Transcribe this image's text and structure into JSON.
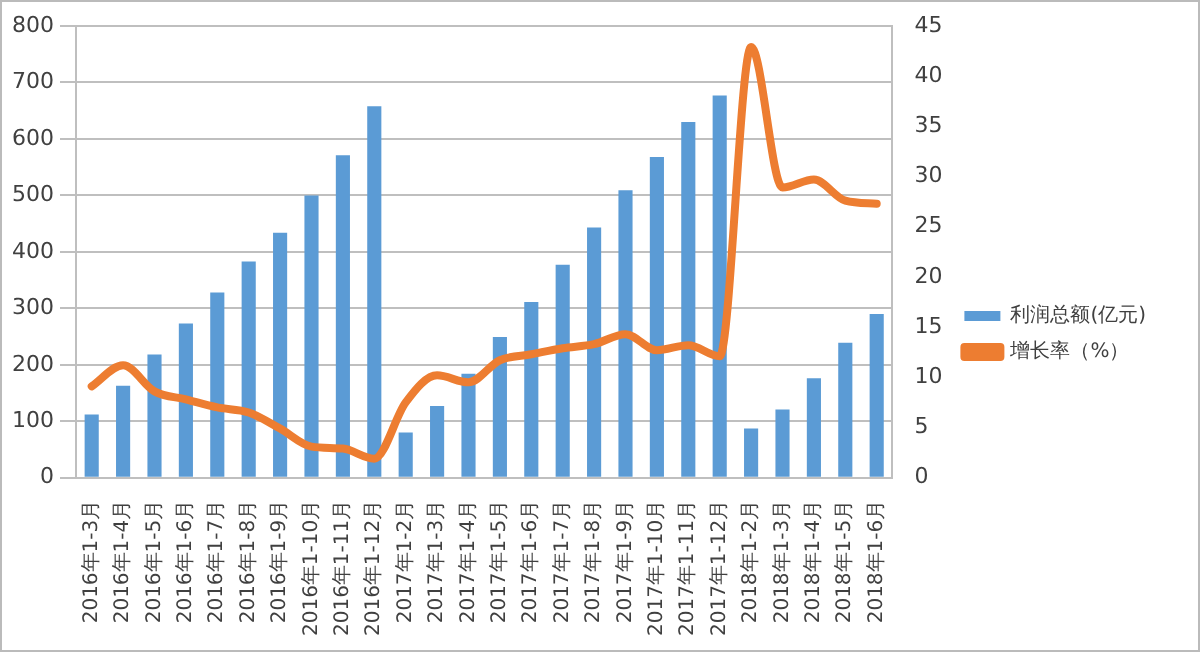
{
  "chart_data": {
    "type": "bar",
    "categories": [
      "2016年1-3月",
      "2016年1-4月",
      "2016年1-5月",
      "2016年1-6月",
      "2016年1-7月",
      "2016年1-8月",
      "2016年1-9月",
      "2016年1-10月",
      "2016年1-11月",
      "2016年1-12月",
      "2017年1-2月",
      "2017年1-3月",
      "2017年1-4月",
      "2017年1-5月",
      "2017年1-6月",
      "2017年1-7月",
      "2017年1-8月",
      "2017年1-9月",
      "2017年1-10月",
      "2017年1-11月",
      "2017年1-12月",
      "2018年1-2月",
      "2018年1-3月",
      "2018年1-4月",
      "2018年1-5月",
      "2018年1-6月"
    ],
    "series": [
      {
        "name": "利润总额(亿元)",
        "color": "#5b9bd5",
        "values": [
          112,
          163,
          218,
          273,
          328,
          383,
          434,
          500,
          571,
          658,
          80,
          127,
          184,
          249,
          311,
          377,
          443,
          509,
          568,
          630,
          677,
          87,
          121,
          176,
          239,
          290
        ]
      },
      {
        "name": "增长率（%）",
        "type": "line",
        "axis": "y2",
        "color": "#ed7d31",
        "values": [
          9.1,
          11.2,
          8.6,
          7.8,
          7.0,
          6.5,
          4.9,
          3.1,
          2.9,
          1.9,
          7.5,
          10.2,
          9.5,
          11.7,
          12.3,
          12.9,
          13.3,
          14.3,
          12.7,
          13.2,
          12.1,
          42.9,
          28.9,
          29.7,
          27.6,
          27.3
        ]
      }
    ],
    "ylim": [
      0,
      800
    ],
    "yticks": [
      0,
      100,
      200,
      300,
      400,
      500,
      600,
      700,
      800
    ],
    "y2lim": [
      0,
      45
    ],
    "y2ticks": [
      0,
      5,
      10,
      15,
      20,
      25,
      30,
      35,
      40,
      45
    ],
    "grid": "y",
    "legend": "right",
    "marker": "none",
    "line_style": "solid"
  }
}
